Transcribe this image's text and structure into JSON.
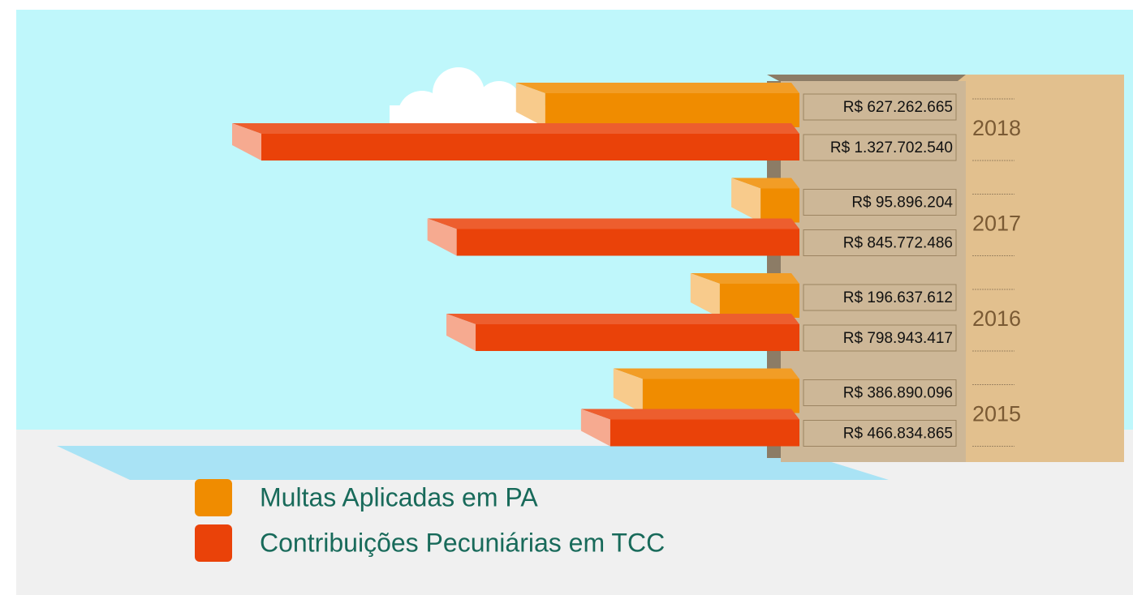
{
  "chart_data": {
    "type": "bar",
    "categories": [
      "2018",
      "2017",
      "2016",
      "2015"
    ],
    "series": [
      {
        "name": "Multas Aplicadas em PA",
        "color": "#f08c00",
        "values": [
          627262665,
          95896204,
          196637612,
          386890096
        ],
        "value_labels": [
          "R$ 627.262.665",
          "R$ 95.896.204",
          "R$ 196.637.612",
          "R$ 386.890.096"
        ]
      },
      {
        "name": "Contribuições Pecuniárias em TCC",
        "color": "#ea4209",
        "values": [
          1327702540,
          845772486,
          798943417,
          466834865
        ],
        "value_labels": [
          "R$ 1.327.702.540",
          "R$ 845.772.486",
          "R$ 798.943.417",
          "R$ 466.834.865"
        ]
      }
    ]
  }
}
